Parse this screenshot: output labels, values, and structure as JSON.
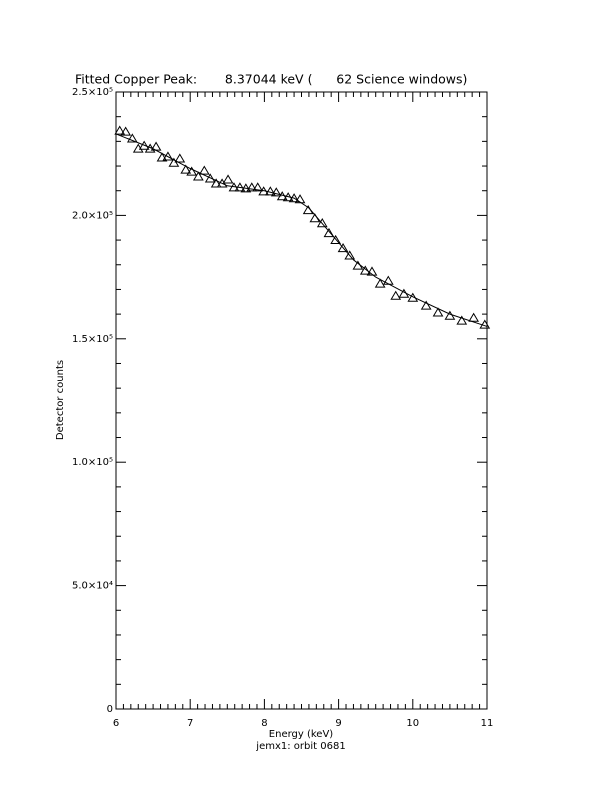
{
  "chart_data": {
    "type": "scatter",
    "title": "Fitted Copper Peak:       8.37044 keV (      62 Science windows)",
    "x_label": "Energy (keV)",
    "subtitle": "jemx1: orbit 0681",
    "y_label": "Detector counts",
    "xlim": [
      6,
      11
    ],
    "xticks": [
      6,
      7,
      8,
      9,
      10,
      11
    ],
    "xminorticks": [
      6.1,
      6.2,
      6.3,
      6.4,
      6.5,
      6.6,
      6.7,
      6.8,
      6.9,
      7.1,
      7.2,
      7.3,
      7.4,
      7.5,
      7.6,
      7.7,
      7.8,
      7.9,
      8.1,
      8.2,
      8.3,
      8.4,
      8.5,
      8.6,
      8.7,
      8.8,
      8.9,
      9.1,
      9.2,
      9.3,
      9.4,
      9.5,
      9.6,
      9.7,
      9.8,
      9.9,
      10.1,
      10.2,
      10.3,
      10.4,
      10.5,
      10.6,
      10.7,
      10.8,
      10.9
    ],
    "ylim": [
      0,
      250000
    ],
    "yticks": [
      {
        "value": 0,
        "label": "0"
      },
      {
        "value": 50000,
        "label": "5.0×10⁴"
      },
      {
        "value": 100000,
        "label": "1.0×10⁵"
      },
      {
        "value": 150000,
        "label": "1.5×10⁵"
      },
      {
        "value": 200000,
        "label": "2.0×10⁵"
      },
      {
        "value": 250000,
        "label": "2.5×10⁵"
      }
    ],
    "yminorticks": [
      10000,
      20000,
      30000,
      40000,
      60000,
      70000,
      80000,
      90000,
      110000,
      120000,
      130000,
      140000,
      160000,
      170000,
      180000,
      190000,
      210000,
      220000,
      230000,
      240000
    ],
    "series": [
      {
        "marker": "triangle",
        "color": "#000000",
        "x": [
          6.05,
          6.13,
          6.22,
          6.3,
          6.38,
          6.46,
          6.54,
          6.62,
          6.7,
          6.78,
          6.86,
          6.94,
          7.02,
          7.11,
          7.19,
          7.27,
          7.35,
          7.43,
          7.51,
          7.59,
          7.67,
          7.75,
          7.83,
          7.91,
          7.99,
          8.08,
          8.16,
          8.24,
          8.32,
          8.4,
          8.48,
          8.59,
          8.68,
          8.78,
          8.87,
          8.96,
          9.06,
          9.15,
          9.26,
          9.36,
          9.45,
          9.56,
          9.67,
          9.77,
          9.88,
          10.0,
          10.18,
          10.34,
          10.5,
          10.66,
          10.82,
          10.97
        ],
        "values": [
          234200,
          233800,
          231000,
          226900,
          228100,
          226900,
          227700,
          223300,
          223700,
          221200,
          222900,
          218400,
          217600,
          215600,
          218000,
          214800,
          212800,
          212800,
          214400,
          211200,
          211200,
          210800,
          211200,
          211200,
          209600,
          209600,
          209200,
          207600,
          207200,
          206800,
          206400,
          202000,
          198700,
          196700,
          192700,
          189900,
          186600,
          183600,
          179500,
          177500,
          177100,
          172200,
          173400,
          167300,
          168100,
          166500,
          163300,
          160500,
          159200,
          157200,
          158400,
          155600
        ]
      },
      {
        "marker": "line",
        "color": "#000000",
        "x": [
          6.0,
          6.5,
          7.0,
          7.5,
          8.0,
          8.4,
          8.6,
          8.8,
          9.0,
          9.2,
          9.5,
          10.0,
          10.5,
          11.0
        ],
        "values": [
          233000,
          227000,
          219000,
          212000,
          210000,
          207000,
          203000,
          196000,
          189000,
          182000,
          175000,
          167000,
          160000,
          155000
        ]
      }
    ]
  }
}
